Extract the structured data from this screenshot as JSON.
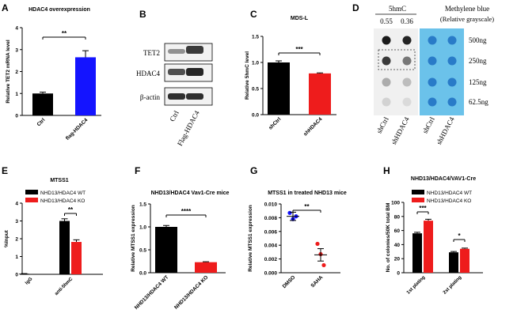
{
  "chart_data": [
    {
      "panel": "A",
      "type": "bar",
      "title": "HDAC4 overexpression",
      "ylabel": "Relative TET2 mRNA level",
      "ylim": [
        0,
        4
      ],
      "yticks": [
        0,
        1,
        2,
        3,
        4
      ],
      "categories": [
        "Ctrl",
        "flag-HDAC4"
      ],
      "values": [
        1.0,
        2.65
      ],
      "errors": [
        0.06,
        0.3
      ],
      "colors": [
        "#000000",
        "#1414ff"
      ],
      "significance": "**"
    },
    {
      "panel": "B",
      "type": "blot",
      "rows": [
        "TET2",
        "HDAC4",
        "β-actin"
      ],
      "lanes": [
        "Ctrl",
        "Flag-HDAC4"
      ]
    },
    {
      "panel": "C",
      "type": "bar",
      "title": "MDS-L",
      "ylabel": "Relative 5hmC level",
      "ylim": [
        0,
        1.5
      ],
      "yticks": [
        0.0,
        0.5,
        1.0,
        1.5
      ],
      "yticklabels": [
        "0.0",
        "0.5",
        "1.0",
        "1.5"
      ],
      "categories": [
        "shCtrl",
        "shHDAC4"
      ],
      "values": [
        1.0,
        0.79
      ],
      "errors": [
        0.03,
        0.01
      ],
      "colors": [
        "#000000",
        "#ee1c1c"
      ],
      "significance": "***"
    },
    {
      "panel": "D",
      "type": "dot-blot",
      "header_left": "5hmC",
      "header_right": "Methylene blue",
      "header_right_sub": "(Relative grayscale)",
      "values": [
        "0.55",
        "0.36"
      ],
      "amounts": [
        "500ng",
        "250ng",
        "125ng",
        "62.5ng"
      ],
      "lanes": [
        "shCtrl",
        "shHDAC4"
      ],
      "intensity": [
        [
          1.0,
          0.95
        ],
        [
          0.85,
          0.55
        ],
        [
          0.3,
          0.22
        ],
        [
          0.12,
          0.08
        ]
      ]
    },
    {
      "panel": "E",
      "type": "bar",
      "title": "MTSS1",
      "ylabel": "%Input",
      "ylim": [
        0,
        4
      ],
      "yticks": [
        0,
        1,
        2,
        3,
        4
      ],
      "categories": [
        "IgG",
        "anti-5hmC"
      ],
      "series": [
        {
          "name": "NHD13/HDAC4 WT",
          "color": "#000000",
          "values": [
            0.03,
            3.0
          ],
          "errors": [
            0.01,
            0.12
          ]
        },
        {
          "name": "NHD13/HDAC4 KO",
          "color": "#ee1c1c",
          "values": [
            0.0,
            1.82
          ],
          "errors": [
            0.0,
            0.12
          ]
        }
      ],
      "significance": "**"
    },
    {
      "panel": "F",
      "type": "bar",
      "title": "NHD13/HDAC4 Vav1-Cre mice",
      "ylabel": "Relative MTSS1 expression",
      "ylim": [
        0,
        1.5
      ],
      "yticks": [
        0.0,
        0.5,
        1.0,
        1.5
      ],
      "yticklabels": [
        "0.0",
        "0.5",
        "1.0",
        "1.5"
      ],
      "categories": [
        "NHD13/HDAC4 WT",
        "NHD13/HDAC4 KO"
      ],
      "values": [
        1.0,
        0.23
      ],
      "errors": [
        0.03,
        0.01
      ],
      "colors": [
        "#000000",
        "#ee1c1c"
      ],
      "significance": "****"
    },
    {
      "panel": "G",
      "type": "scatter",
      "title": "MTSS1 in treated NHD13 mice",
      "ylabel": "Relative MTSS1 expression",
      "ylim": [
        0,
        0.01
      ],
      "yticks": [
        0,
        0.002,
        0.004,
        0.006,
        0.008,
        0.01
      ],
      "yticklabels": [
        "0.000",
        "0.002",
        "0.004",
        "0.006",
        "0.008",
        "0.010"
      ],
      "categories": [
        "DMSO",
        "SAHA"
      ],
      "points": [
        [
          0.0087,
          0.0078,
          0.0082
        ],
        [
          0.0042,
          0.0027,
          0.0011
        ]
      ],
      "means": [
        0.0082,
        0.0026
      ],
      "sems": [
        0.0006,
        0.0009
      ],
      "colors": [
        "#1414ff",
        "#ee1c1c"
      ],
      "significance": "**"
    },
    {
      "panel": "H",
      "type": "bar",
      "title": "NHD13/HDAC4/VAV1-Cre",
      "ylabel": "No. of colonies/50K total BM",
      "ylim": [
        0,
        100
      ],
      "yticks": [
        0,
        20,
        40,
        60,
        80,
        100
      ],
      "categories": [
        "1st plating",
        "2st plating"
      ],
      "series": [
        {
          "name": "NHD13/HDAC4 WT",
          "color": "#000000",
          "values": [
            56,
            29
          ],
          "errors": [
            1.5,
            1.2
          ]
        },
        {
          "name": "NHD13/HDAC4 KO",
          "color": "#ee1c1c",
          "values": [
            74,
            34
          ],
          "errors": [
            2.0,
            1.0
          ]
        }
      ],
      "significance": [
        "***",
        "*"
      ]
    }
  ]
}
